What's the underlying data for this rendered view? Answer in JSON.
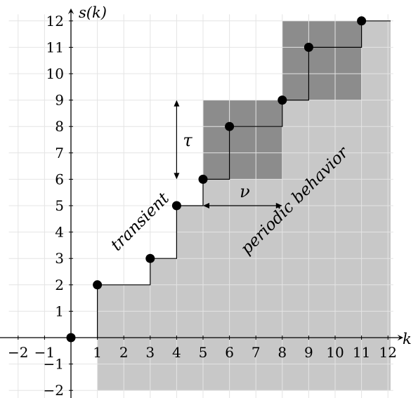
{
  "chart_data": {
    "type": "step",
    "x_axis": {
      "label": "k",
      "range": [
        -2,
        12
      ],
      "tick_labels": [
        "−2",
        "−1",
        "1",
        "2",
        "3",
        "4",
        "5",
        "6",
        "7",
        "8",
        "9",
        "10",
        "11",
        "12"
      ]
    },
    "y_axis": {
      "label": "s(k)",
      "range": [
        -2,
        12
      ],
      "tick_labels": [
        "−2",
        "−1",
        "1",
        "2",
        "3",
        "4",
        "5",
        "6",
        "7",
        "8",
        "9",
        "10",
        "11",
        "12"
      ]
    },
    "grid": true,
    "points": [
      {
        "x": 0,
        "y": 0
      },
      {
        "x": 1,
        "y": 2
      },
      {
        "x": 3,
        "y": 3
      },
      {
        "x": 4,
        "y": 5
      },
      {
        "x": 5,
        "y": 6
      },
      {
        "x": 6,
        "y": 8
      },
      {
        "x": 8,
        "y": 9
      },
      {
        "x": 9,
        "y": 11
      },
      {
        "x": 11,
        "y": 12
      }
    ],
    "shaded_regions": [
      {
        "kind": "light",
        "from": [
          0,
          -2
        ],
        "to": [
          12.1,
          12
        ],
        "note": "area below the step function"
      },
      {
        "kind": "dark",
        "from": [
          5,
          6
        ],
        "to": [
          8,
          9
        ]
      },
      {
        "kind": "dark",
        "from": [
          8,
          9
        ],
        "to": [
          11,
          12
        ]
      }
    ],
    "annotations": {
      "transient": "transient",
      "periodic": "periodic behavior",
      "tau": "τ",
      "nu": "ν"
    },
    "colors": {
      "light_fill": "#c8c8c8",
      "dark_fill": "#8c8c8c",
      "grid": "#e4e4e4",
      "grid_on_fill": "#dcdcdc",
      "ink": "#000000"
    }
  }
}
